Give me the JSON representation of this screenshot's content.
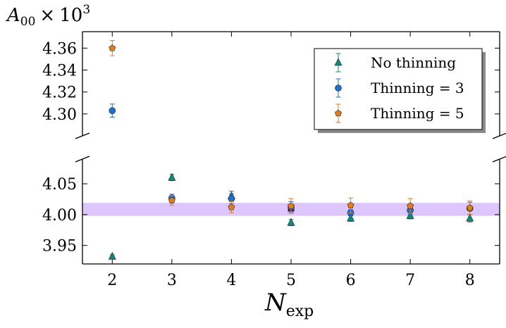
{
  "chart_data": {
    "type": "scatter",
    "ylabel": "A00 × 10^3",
    "ylabel_parts": {
      "base": "A",
      "sub": "00",
      "times": "×",
      "pow_base": "10",
      "pow_exp": "3"
    },
    "xlabel_parts": {
      "base": "N",
      "sub": "exp"
    },
    "xlim": [
      1.5,
      8.5
    ],
    "x_ticks": [
      2,
      3,
      4,
      5,
      6,
      7,
      8
    ],
    "x_tick_labels": [
      "2",
      "3",
      "4",
      "5",
      "6",
      "7",
      "8"
    ],
    "y_broken_axis": true,
    "upper_panel": {
      "ylim": [
        4.28,
        4.375
      ],
      "y_ticks": [
        4.3,
        4.32,
        4.34,
        4.36
      ],
      "y_tick_labels": [
        "4.30",
        "4.32",
        "4.34",
        "4.36"
      ]
    },
    "lower_panel": {
      "ylim": [
        3.92,
        4.09
      ],
      "y_ticks": [
        3.95,
        4.0,
        4.05
      ],
      "y_tick_labels": [
        "3.95",
        "4.00",
        "4.05"
      ]
    },
    "band": {
      "y_min": 3.998,
      "y_max": 4.019,
      "color": "#ddc6fb"
    },
    "central_point": {
      "x": 5,
      "y": 4.01,
      "color": "#4b0c7a"
    },
    "series": [
      {
        "name": "No thinning",
        "marker": "triangle",
        "color": "#0f8a7a",
        "x_offset": 0,
        "points": [
          {
            "x": 2,
            "y": 3.932,
            "err": 0.003
          },
          {
            "x": 3,
            "y": 4.06,
            "err": 0.005
          },
          {
            "x": 4,
            "y": 4.03,
            "err": 0.008
          },
          {
            "x": 5,
            "y": 3.987,
            "err": 0.005
          },
          {
            "x": 6,
            "y": 3.994,
            "err": 0.005
          },
          {
            "x": 7,
            "y": 3.998,
            "err": 0.005
          },
          {
            "x": 8,
            "y": 3.994,
            "err": 0.006
          }
        ]
      },
      {
        "name": "Thinning = 3",
        "marker": "circle",
        "color": "#1f6fd0",
        "x_offset": 0,
        "points": [
          {
            "x": 2,
            "y": 4.303,
            "err": 0.006
          },
          {
            "x": 3,
            "y": 4.027,
            "err": 0.006
          },
          {
            "x": 4,
            "y": 4.026,
            "err": 0.008
          },
          {
            "x": 5,
            "y": 4.012,
            "err": 0.009
          },
          {
            "x": 6,
            "y": 4.003,
            "err": 0.005
          },
          {
            "x": 7,
            "y": 4.007,
            "err": 0.007
          },
          {
            "x": 8,
            "y": 4.01,
            "err": 0.01
          }
        ]
      },
      {
        "name": "Thinning = 5",
        "marker": "pentagon",
        "color": "#e07c1c",
        "x_offset": 0,
        "points": [
          {
            "x": 2,
            "y": 4.36,
            "err": 0.007
          },
          {
            "x": 3,
            "y": 4.023,
            "err": 0.008
          },
          {
            "x": 4,
            "y": 4.012,
            "err": 0.009
          },
          {
            "x": 5,
            "y": 4.014,
            "err": 0.012
          },
          {
            "x": 6,
            "y": 4.015,
            "err": 0.012
          },
          {
            "x": 7,
            "y": 4.014,
            "err": 0.012
          },
          {
            "x": 8,
            "y": 4.011,
            "err": 0.011
          }
        ]
      }
    ],
    "legend": {
      "position": "upper-panel-right",
      "entries": [
        "No thinning",
        "Thinning = 3",
        "Thinning = 5"
      ]
    },
    "grid": false
  }
}
